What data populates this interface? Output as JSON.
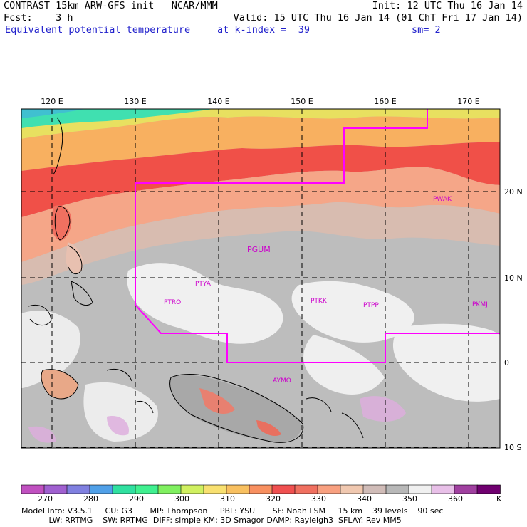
{
  "header": {
    "line1_left": "CONTRAST 15km ARW-GFS init   NCAR/MMM",
    "line1_right": "Init: 12 UTC Thu 16 Jan 14",
    "line2_left": "Fcst:    3 h",
    "line2_right": "Valid: 15 UTC Thu 16 Jan 14 (01 ChT Fri 17 Jan 14)",
    "line3_left": "Equivalent potential temperature",
    "line3_mid": "at k-index =  39",
    "line3_right": "sm= 2"
  },
  "map": {
    "lon_labels": [
      "120 E",
      "130 E",
      "140 E",
      "150 E",
      "160 E",
      "170 E"
    ],
    "lat_labels": [
      "20 N",
      "10 N",
      "0",
      "10 S"
    ],
    "stations": [
      "PWAK",
      "PGUM",
      "PTYA",
      "PTRO",
      "PTKK",
      "PTPP",
      "PKMJ",
      "AYMO"
    ],
    "colors": {
      "boundary": "#ff00ff",
      "station_text": "#cc00cc",
      "grid": "#000000"
    }
  },
  "colorbar": {
    "colors": [
      "#c050c0",
      "#a060d0",
      "#8080e0",
      "#50a0e8",
      "#30e0a0",
      "#40f090",
      "#80f060",
      "#d0f060",
      "#f8e070",
      "#f8c060",
      "#f89060",
      "#f05050",
      "#f07060",
      "#f8a080",
      "#f0c8b0",
      "#d0bcb8",
      "#b8b8b8",
      "#f0f0f0",
      "#e8c0e8",
      "#a040a0",
      "#700070"
    ],
    "labels": [
      "270",
      "280",
      "290",
      "300",
      "310",
      "320",
      "330",
      "340",
      "350",
      "360",
      "K"
    ]
  },
  "footer": {
    "line1": "Model Info: V3.5.1     CU: G3       MP: Thompson     PBL: YSU       SF: Noah LSM     15 km    39 levels    90 sec",
    "line2": "           LW: RRTMG    SW: RRTMG  DIFF: simple KM: 3D Smagor DAMP: Rayleigh3  SFLAY: Rev MM5"
  }
}
